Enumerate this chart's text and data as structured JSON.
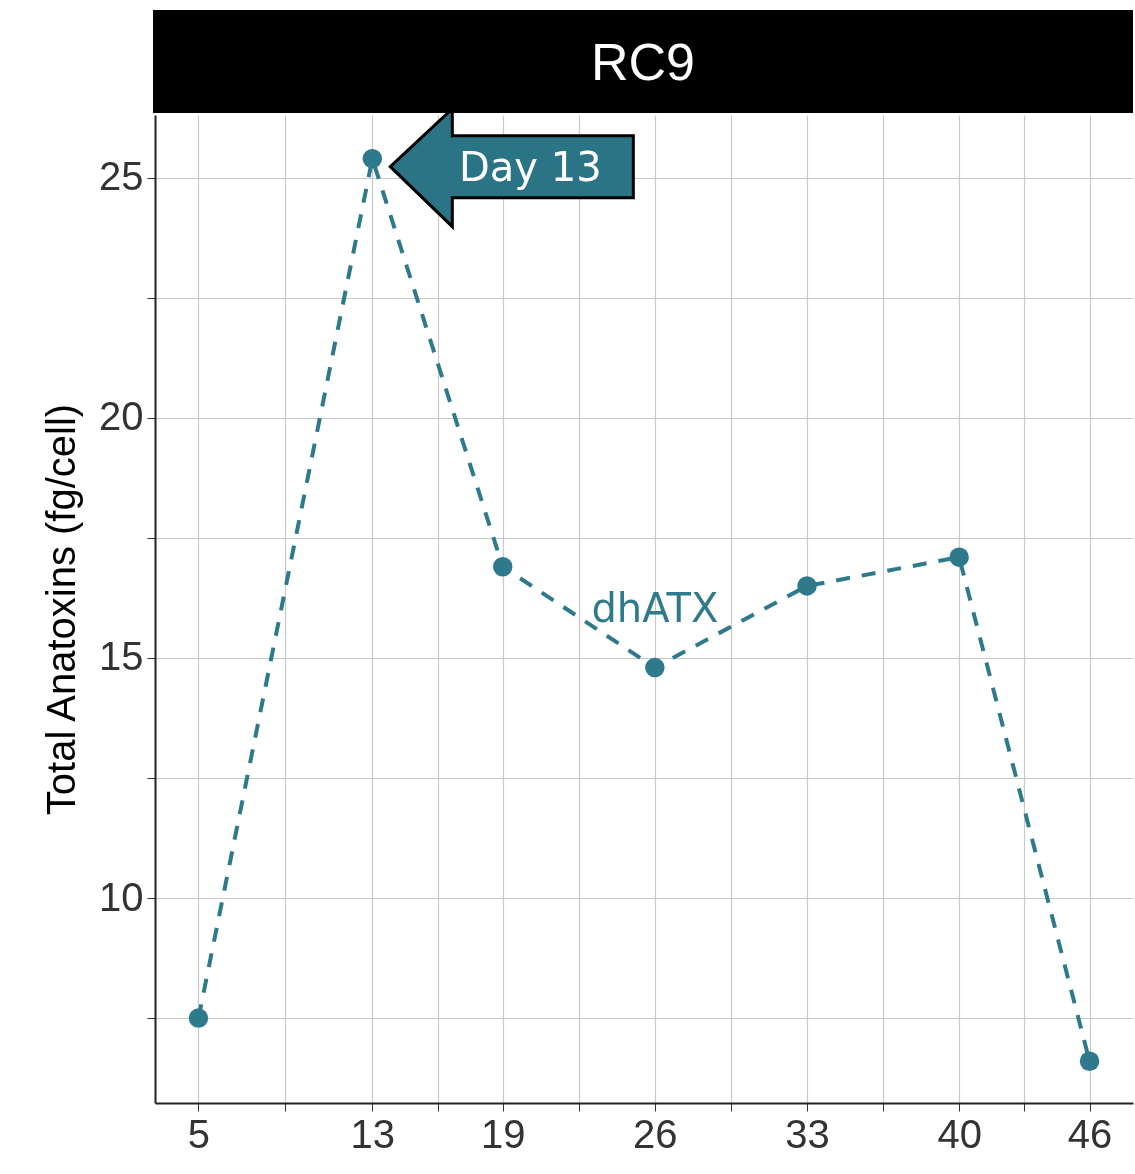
{
  "chart_data": {
    "type": "line",
    "title": "RC9",
    "ylabel": "Total Anatoxins (fg/cell)",
    "xlim": [
      3,
      48
    ],
    "xticks": [
      5,
      {
        "value": 9,
        "label": null
      },
      13,
      {
        "value": 16,
        "label": null
      },
      19,
      {
        "value": 22.5,
        "label": null
      },
      26,
      {
        "value": 29.5,
        "label": null
      },
      33,
      {
        "value": 36.5,
        "label": null
      },
      40,
      {
        "value": 43,
        "label": null
      },
      46
    ],
    "ylim": [
      5.73,
      26.31
    ],
    "yticks": [
      {
        "value": 7.5,
        "label": null
      },
      10,
      {
        "value": 12.5,
        "label": null
      },
      15,
      {
        "value": 17.5,
        "label": null
      },
      20,
      {
        "value": 22.5,
        "label": null
      },
      25
    ],
    "grid": true,
    "marker": "circle",
    "line_style": "dashed",
    "series": [
      {
        "name": "dhATX",
        "color": "#2e7a8c",
        "x": [
          5,
          13,
          19,
          26,
          33,
          40,
          46
        ],
        "values": [
          7.5,
          25.4,
          16.9,
          14.8,
          16.5,
          17.1,
          6.6
        ]
      }
    ],
    "annotations": [
      {
        "text": "Day 13",
        "x": 13,
        "y": 25.4
      }
    ]
  }
}
